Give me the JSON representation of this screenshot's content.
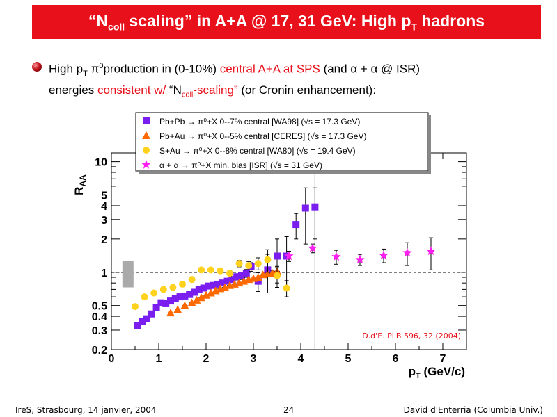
{
  "slide": {
    "title_main": "“N",
    "title_sub": "coll",
    "title_rest1": " scaling” in A+A @ 17, 31 GeV: High p",
    "title_sub2": "T",
    "title_rest2": " hadrons",
    "bullet": {
      "t1": "High p",
      "t1_sub": "T",
      "t2": " π",
      "t2_sup": "0",
      "t3": "production in (0-10%) ",
      "red1": "central A+A at SPS",
      "t4": " (and α + α  @ ISR)",
      "t5": "energies ",
      "red2": "consistent w/",
      "t6": "  “N",
      "red3_sub": "coll",
      "red3": "-scaling”",
      "t7": " (or Cronin enhancement):"
    }
  },
  "footer": {
    "left": "IreS, Strasbourg, 14 janvier, 2004",
    "page": "24",
    "right": "David d'Enterria (Columbia Univ.)"
  },
  "chart_data": {
    "type": "scatter",
    "y_scale": "log",
    "xlim": [
      0,
      7.5
    ],
    "ylim": [
      0.2,
      12
    ],
    "x_ticks": [
      "0",
      "1",
      "2",
      "3",
      "4",
      "5",
      "6",
      "7"
    ],
    "y_ticks": [
      "0.2",
      "0.3",
      "0.4",
      "0.5",
      "1",
      "2",
      "3",
      "4",
      "5",
      "10"
    ],
    "xlabel": "p",
    "xlabel_sub": "T",
    "xlabel_unit": " (GeV/c)",
    "ylabel": "R",
    "ylabel_sub": "AA",
    "reference_line_y": 1,
    "vertical_line_x": 4.3,
    "annotation": "D.d'E. PLB 596, 32 (2004)",
    "norm_box": {
      "x": 0.35,
      "y_low": 0.73,
      "y_high": 1.27,
      "color": "#aaaaaa"
    },
    "legend": [
      {
        "text": "Pb+Pb → π⁰+X  0--7%  central [WA98] (√s = 17.3 GeV)"
      },
      {
        "text": "Pb+Au → π⁰+X  0--5% central [CERES] (√s = 17.3 GeV)"
      },
      {
        "text": "S+Au → π⁰+X 0--8%  central [WA80] (√s = 19.4 GeV)"
      },
      {
        "text": "α + α → π⁰+X min. bias [ISR] (√s = 31 GeV)"
      }
    ],
    "series": [
      {
        "name": "Pb+Pb → π⁰+X 0--7% central [WA98]",
        "marker": "square",
        "color": "#7a1ef0",
        "x": [
          0.55,
          0.65,
          0.75,
          0.85,
          0.95,
          1.05,
          1.15,
          1.25,
          1.35,
          1.45,
          1.55,
          1.65,
          1.75,
          1.85,
          1.95,
          2.05,
          2.15,
          2.25,
          2.35,
          2.45,
          2.55,
          2.65,
          2.75,
          2.85,
          2.95,
          3.1,
          3.3,
          3.5,
          3.7,
          3.9,
          4.1,
          4.3
        ],
        "y": [
          0.33,
          0.36,
          0.38,
          0.42,
          0.48,
          0.53,
          0.52,
          0.55,
          0.58,
          0.6,
          0.61,
          0.63,
          0.66,
          0.7,
          0.72,
          0.75,
          0.76,
          0.78,
          0.8,
          0.83,
          0.86,
          0.91,
          0.93,
          0.98,
          1.12,
          0.83,
          1.05,
          1.4,
          1.4,
          2.7,
          3.8,
          3.9
        ],
        "err": [
          0,
          0,
          0,
          0,
          0,
          0,
          0,
          0,
          0,
          0,
          0,
          0,
          0,
          0,
          0,
          0,
          0,
          0,
          0,
          0,
          0,
          0.06,
          0.07,
          0.08,
          0.1,
          0.16,
          0.4,
          0.6,
          0.7,
          0.7,
          2.0,
          1.9
        ]
      },
      {
        "name": "Pb+Au → π⁰+X 0--5% central [CERES]",
        "marker": "triangle",
        "color": "#ff6a00",
        "x": [
          1.25,
          1.4,
          1.55,
          1.7,
          1.8,
          1.9,
          2.0,
          2.1,
          2.2,
          2.3,
          2.4,
          2.5,
          2.6,
          2.7,
          2.8,
          2.9,
          3.0,
          3.1,
          3.2,
          3.3,
          3.4,
          3.5
        ],
        "y": [
          0.43,
          0.46,
          0.5,
          0.53,
          0.56,
          0.59,
          0.62,
          0.65,
          0.68,
          0.71,
          0.73,
          0.76,
          0.78,
          0.8,
          0.83,
          0.86,
          0.88,
          0.9,
          0.95,
          0.97,
          0.98,
          1.02
        ],
        "err": [
          0,
          0,
          0,
          0,
          0,
          0,
          0,
          0,
          0,
          0,
          0,
          0,
          0,
          0,
          0,
          0,
          0,
          0,
          0,
          0,
          0.06,
          0.08
        ]
      },
      {
        "name": "S+Au → π⁰+X 0--8% central [WA80]",
        "marker": "circle",
        "color": "#ffd21e",
        "x": [
          0.5,
          0.7,
          0.9,
          1.1,
          1.3,
          1.5,
          1.7,
          1.9,
          2.1,
          2.3,
          2.5,
          2.7,
          2.9,
          3.1,
          3.3,
          3.5,
          3.7
        ],
        "y": [
          0.49,
          0.6,
          0.65,
          0.7,
          0.73,
          0.78,
          0.86,
          1.05,
          1.05,
          1.03,
          0.98,
          1.2,
          1.15,
          1.2,
          1.3,
          0.93,
          0.72
        ],
        "err": [
          0.02,
          0.02,
          0.02,
          0.02,
          0.02,
          0.03,
          0.03,
          0.04,
          0.04,
          0.05,
          0.06,
          0.08,
          0.1,
          0.15,
          0.3,
          0.2,
          0.12
        ]
      },
      {
        "name": "α + α → π⁰+X min. bias [ISR]",
        "marker": "star",
        "color": "#ff1ef0",
        "x": [
          3.75,
          4.25,
          4.75,
          5.25,
          5.75,
          6.25,
          6.75
        ],
        "y": [
          1.4,
          1.65,
          1.38,
          1.3,
          1.42,
          1.5,
          1.55
        ],
        "err": [
          0.15,
          0.15,
          0.2,
          0.15,
          0.2,
          0.35,
          0.5
        ]
      }
    ]
  }
}
